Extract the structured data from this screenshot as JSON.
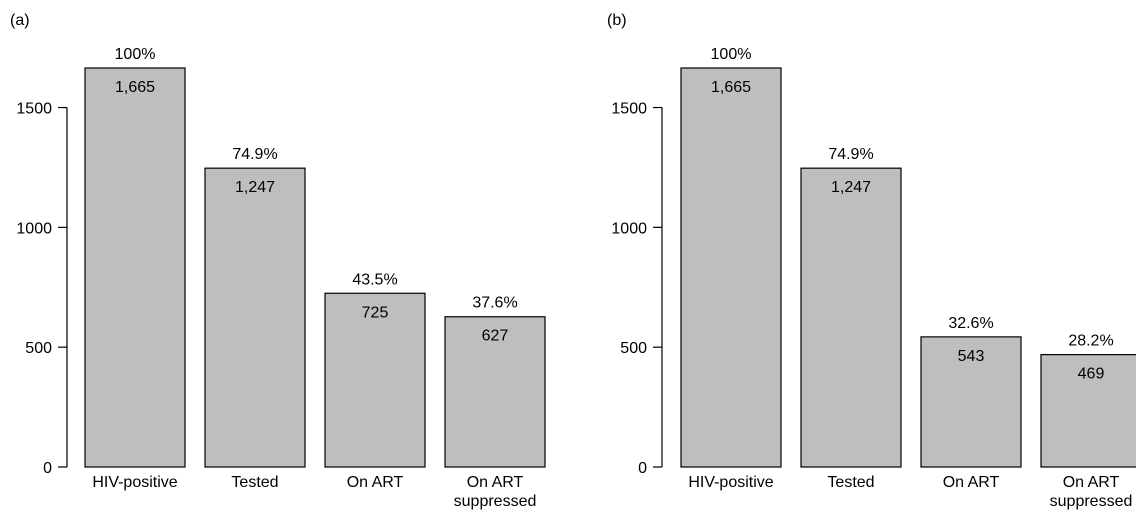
{
  "chart_data": [
    {
      "type": "bar",
      "panel_label": "(a)",
      "categories": [
        [
          "HIV-positive"
        ],
        [
          "Tested"
        ],
        [
          "On ART"
        ],
        [
          "On ART",
          "suppressed"
        ]
      ],
      "values": [
        1665,
        1247,
        725,
        627
      ],
      "value_labels": [
        "1,665",
        "1,247",
        "725",
        "627"
      ],
      "percent_labels": [
        "100%",
        "74.9%",
        "43.5%",
        "37.6%"
      ],
      "yticks": [
        0,
        500,
        1000,
        1500
      ],
      "ylim": [
        0,
        1665
      ],
      "grid": false,
      "bar_color": "#bebebe"
    },
    {
      "type": "bar",
      "panel_label": "(b)",
      "categories": [
        [
          "HIV-positive"
        ],
        [
          "Tested"
        ],
        [
          "On ART"
        ],
        [
          "On ART",
          "suppressed"
        ]
      ],
      "values": [
        1665,
        1247,
        543,
        469
      ],
      "value_labels": [
        "1,665",
        "1,247",
        "543",
        "469"
      ],
      "percent_labels": [
        "100%",
        "74.9%",
        "32.6%",
        "28.2%"
      ],
      "yticks": [
        0,
        500,
        1000,
        1500
      ],
      "ylim": [
        0,
        1665
      ],
      "grid": false,
      "bar_color": "#bebebe"
    }
  ]
}
